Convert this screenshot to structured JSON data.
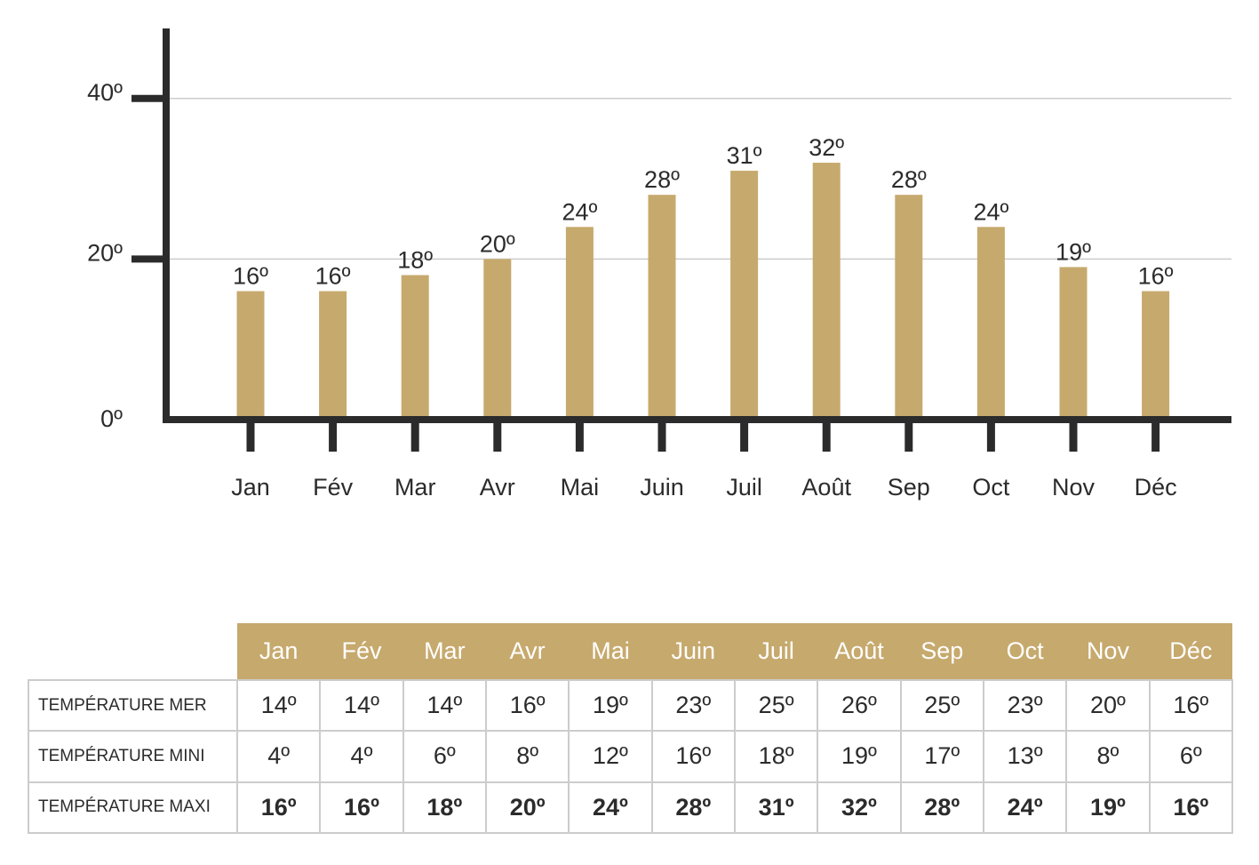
{
  "colors": {
    "bar": "#c6a96d",
    "axis": "#2b2b2b",
    "grid": "#cccccc",
    "text": "#2b2b2b",
    "header_bg": "#c6a96d",
    "header_text": "#ffffff"
  },
  "chart_data": {
    "type": "bar",
    "categories": [
      "Jan",
      "Fév",
      "Mar",
      "Avr",
      "Mai",
      "Juin",
      "Juil",
      "Août",
      "Sep",
      "Oct",
      "Nov",
      "Déc"
    ],
    "values": [
      16,
      16,
      18,
      20,
      24,
      28,
      31,
      32,
      28,
      24,
      19,
      16
    ],
    "data_labels": [
      "16º",
      "16º",
      "18º",
      "20º",
      "24º",
      "28º",
      "31º",
      "32º",
      "28º",
      "24º",
      "19º",
      "16º"
    ],
    "y_ticks": [
      0,
      20,
      40
    ],
    "y_tick_labels": [
      "0º",
      "20º",
      "40º"
    ],
    "ylim": [
      0,
      49
    ],
    "grid": true,
    "title": "",
    "xlabel": "",
    "ylabel": ""
  },
  "table": {
    "months": [
      "Jan",
      "Fév",
      "Mar",
      "Avr",
      "Mai",
      "Juin",
      "Juil",
      "Août",
      "Sep",
      "Oct",
      "Nov",
      "Déc"
    ],
    "rows": [
      {
        "label": "TEMPÉRATURE MER",
        "values": [
          "14º",
          "14º",
          "14º",
          "16º",
          "19º",
          "23º",
          "25º",
          "26º",
          "25º",
          "23º",
          "20º",
          "16º"
        ]
      },
      {
        "label": "TEMPÉRATURE MINI",
        "values": [
          "4º",
          "4º",
          "6º",
          "8º",
          "12º",
          "16º",
          "18º",
          "19º",
          "17º",
          "13º",
          "8º",
          "6º"
        ]
      },
      {
        "label": "TEMPÉRATURE MAXI",
        "values": [
          "16º",
          "16º",
          "18º",
          "20º",
          "24º",
          "28º",
          "31º",
          "32º",
          "28º",
          "24º",
          "19º",
          "16º"
        ]
      }
    ]
  }
}
